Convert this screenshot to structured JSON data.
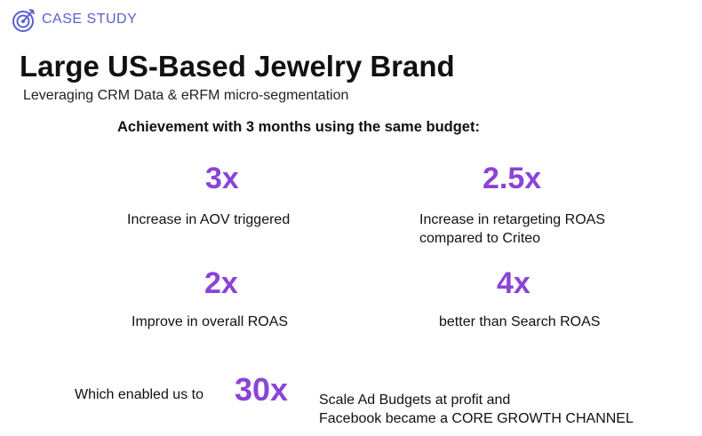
{
  "header": {
    "tag": "CASE STUDY",
    "logo_icon": "target-icon"
  },
  "title": "Large US-Based Jewelry Brand",
  "subtitle": "Leveraging CRM Data & eRFM micro-segmentation",
  "headline": "Achievement with 3 months using the same budget:",
  "stats": [
    {
      "value": "3x",
      "line1": "Increase in AOV triggered",
      "line2": ""
    },
    {
      "value": "2.5x",
      "line1": "Increase in retargeting ROAS",
      "line2": "compared to Criteo"
    },
    {
      "value": "2x",
      "line1": "Improve in overall ROAS",
      "line2": ""
    },
    {
      "value": "4x",
      "line1": "better than Search ROAS",
      "line2": ""
    }
  ],
  "summary": {
    "intro": "Which enabled us to",
    "value": "30x",
    "line1": "Scale Ad Budgets at profit and",
    "line2": "Facebook became a CORE GROWTH CHANNEL"
  },
  "colors": {
    "accent": "#8a44d6",
    "tag": "#5a5fd0",
    "text": "#111111"
  }
}
